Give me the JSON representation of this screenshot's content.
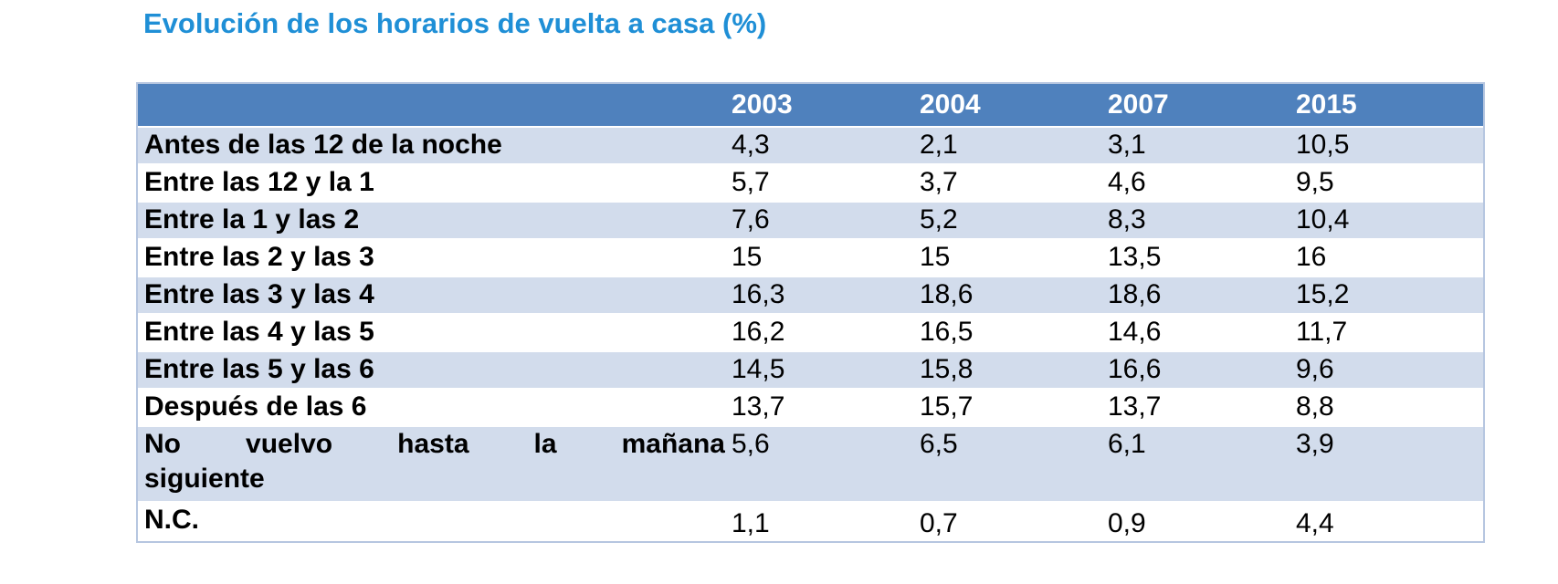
{
  "title": "Evolución de los horarios de vuelta a casa (%)",
  "colors": {
    "title": "#1f8fd6",
    "header_bg": "#4f81bd",
    "header_text": "#ffffff",
    "row_alt": "#d2dcec",
    "row_plain": "#ffffff"
  },
  "table": {
    "columns": [
      "",
      "2003",
      "2004",
      "2007",
      "2015"
    ],
    "rows": [
      {
        "label": "Antes de las 12 de la noche",
        "values": [
          "4,3",
          "2,1",
          "3,1",
          "10,5"
        ]
      },
      {
        "label": "Entre las 12 y la 1",
        "values": [
          "5,7",
          "3,7",
          "4,6",
          "9,5"
        ]
      },
      {
        "label": "Entre la 1 y las 2",
        "values": [
          "7,6",
          "5,2",
          "8,3",
          "10,4"
        ]
      },
      {
        "label": "Entre las 2 y las 3",
        "values": [
          "15",
          "15",
          "13,5",
          "16"
        ]
      },
      {
        "label": "Entre las 3 y las 4",
        "values": [
          "16,3",
          "18,6",
          "18,6",
          "15,2"
        ]
      },
      {
        "label": "Entre las 4 y las 5",
        "values": [
          "16,2",
          "16,5",
          "14,6",
          "11,7"
        ]
      },
      {
        "label": "Entre las 5 y las 6",
        "values": [
          "14,5",
          "15,8",
          "16,6",
          "9,6"
        ]
      },
      {
        "label": "Después de las 6",
        "values": [
          "13,7",
          "15,7",
          "13,7",
          "8,8"
        ]
      },
      {
        "label_line1": "No vuelvo hasta la mañana",
        "label_line2": "siguiente",
        "values": [
          "5,6",
          "6,5",
          "6,1",
          "3,9"
        ]
      },
      {
        "label": "N.C.",
        "values": [
          "1,1",
          "0,7",
          "0,9",
          "4,4"
        ]
      }
    ]
  }
}
